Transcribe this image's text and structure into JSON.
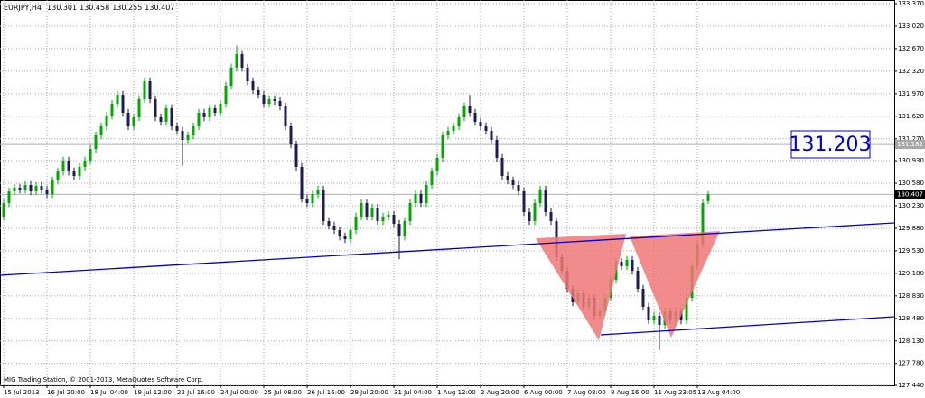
{
  "chart_data": {
    "type": "candlestick",
    "symbol": "EURJPY,H4",
    "footer": "MIG Trading Station, © 2001-2013, MetaQuotes Software Corp.",
    "annotation": "131.203",
    "marker_line": 131.182,
    "up_color": "#00a800",
    "down_color": "#1c1c4e",
    "ylim": [
      127.44,
      133.37
    ],
    "yticks": [
      {
        "value": 127.44,
        "label": "127.440"
      },
      {
        "value": 127.78,
        "label": "127.780"
      },
      {
        "value": 128.13,
        "label": "128.130"
      },
      {
        "value": 128.48,
        "label": "128.480"
      },
      {
        "value": 128.83,
        "label": "128.830"
      },
      {
        "value": 129.18,
        "label": "129.180"
      },
      {
        "value": 129.53,
        "label": "129.530"
      },
      {
        "value": 129.88,
        "label": "129.880"
      },
      {
        "value": 130.23,
        "label": "130.230"
      },
      {
        "value": 130.58,
        "label": "130.580"
      },
      {
        "value": 130.93,
        "label": "130.930"
      },
      {
        "value": 131.27,
        "label": "131.270"
      },
      {
        "value": 131.62,
        "label": "131.620"
      },
      {
        "value": 131.97,
        "label": "131.970"
      },
      {
        "value": 132.32,
        "label": "132.320"
      },
      {
        "value": 132.67,
        "label": "132.670"
      },
      {
        "value": 133.02,
        "label": "133.020"
      },
      {
        "value": 133.37,
        "label": "133.370"
      }
    ],
    "grid": true,
    "categories": [
      "15 Jul 2013",
      null,
      null,
      null,
      null,
      null,
      null,
      null,
      "16 Jul 20:00",
      null,
      null,
      null,
      null,
      null,
      null,
      null,
      "18 Jul 04:00",
      null,
      null,
      null,
      null,
      null,
      null,
      null,
      "19 Jul 12:00",
      null,
      null,
      null,
      null,
      null,
      null,
      null,
      "22 Jul 16:00",
      null,
      null,
      null,
      null,
      null,
      null,
      null,
      "24 Jul 00:00",
      null,
      null,
      null,
      null,
      null,
      null,
      null,
      "25 Jul 08:00",
      null,
      null,
      null,
      null,
      null,
      null,
      null,
      "26 Jul 16:00",
      null,
      null,
      null,
      null,
      null,
      null,
      null,
      "29 Jul 20:00",
      null,
      null,
      null,
      null,
      null,
      null,
      null,
      "31 Jul 04:00",
      null,
      null,
      null,
      null,
      null,
      null,
      null,
      "1 Aug 12:00",
      null,
      null,
      null,
      null,
      null,
      null,
      null,
      "2 Aug 20:00",
      null,
      null,
      null,
      null,
      null,
      null,
      null,
      "6 Aug 00:00",
      null,
      null,
      null,
      null,
      null,
      null,
      null,
      "7 Aug 08:00",
      null,
      null,
      null,
      null,
      null,
      null,
      null,
      "8 Aug 16:00",
      null,
      null,
      null,
      null,
      null,
      null,
      null,
      "11 Aug 23:05",
      null,
      null,
      null,
      null,
      null,
      null,
      null,
      "13 Aug 04:00",
      null,
      null
    ],
    "candles": [
      [
        130.06,
        130.332,
        130.0,
        130.272
      ],
      [
        130.272,
        130.514,
        130.212,
        130.454
      ],
      [
        130.454,
        130.57,
        130.394,
        130.51
      ],
      [
        130.51,
        130.57,
        130.422,
        130.482
      ],
      [
        130.482,
        130.612,
        130.422,
        130.552
      ],
      [
        130.552,
        130.612,
        130.394,
        130.454
      ],
      [
        130.454,
        130.598,
        130.394,
        130.538
      ],
      [
        130.538,
        130.598,
        130.422,
        130.482
      ],
      [
        130.482,
        130.542,
        130.352,
        130.412
      ],
      [
        130.412,
        130.682,
        130.352,
        130.622
      ],
      [
        130.622,
        130.822,
        130.562,
        130.762
      ],
      [
        130.762,
        130.991,
        130.702,
        130.931
      ],
      [
        130.931,
        130.991,
        130.702,
        130.762
      ],
      [
        130.762,
        130.822,
        130.632,
        130.692
      ],
      [
        130.692,
        130.893,
        130.632,
        130.833
      ],
      [
        130.833,
        130.991,
        130.773,
        130.931
      ],
      [
        130.931,
        131.173,
        130.871,
        131.113
      ],
      [
        131.113,
        131.383,
        131.053,
        131.323
      ],
      [
        131.323,
        131.523,
        131.263,
        131.463
      ],
      [
        131.463,
        131.692,
        131.403,
        131.632
      ],
      [
        131.632,
        131.874,
        131.572,
        131.814
      ],
      [
        131.814,
        132.014,
        131.754,
        131.954
      ],
      [
        131.954,
        132.014,
        131.614,
        131.674
      ],
      [
        131.674,
        131.734,
        131.403,
        131.463
      ],
      [
        131.463,
        131.664,
        131.403,
        131.604
      ],
      [
        131.604,
        131.944,
        131.544,
        131.884
      ],
      [
        131.884,
        132.224,
        131.824,
        132.164
      ],
      [
        132.164,
        132.224,
        131.824,
        131.884
      ],
      [
        131.884,
        131.944,
        131.544,
        131.604
      ],
      [
        131.604,
        131.664,
        131.474,
        131.534
      ],
      [
        131.534,
        131.804,
        131.474,
        131.744
      ],
      [
        131.744,
        131.804,
        131.403,
        131.463
      ],
      [
        131.463,
        131.523,
        131.333,
        131.393
      ],
      [
        131.393,
        131.453,
        130.85,
        131.253
      ],
      [
        131.253,
        131.383,
        131.193,
        131.323
      ],
      [
        131.323,
        131.523,
        131.263,
        131.463
      ],
      [
        131.463,
        131.734,
        131.403,
        131.674
      ],
      [
        131.674,
        131.734,
        131.544,
        131.604
      ],
      [
        131.604,
        131.804,
        131.544,
        131.744
      ],
      [
        131.744,
        131.804,
        131.614,
        131.674
      ],
      [
        131.674,
        131.874,
        131.614,
        131.814
      ],
      [
        131.814,
        132.154,
        131.754,
        132.094
      ],
      [
        132.094,
        132.435,
        132.034,
        132.375
      ],
      [
        132.375,
        132.72,
        132.315,
        132.585
      ],
      [
        132.585,
        132.645,
        132.315,
        132.375
      ],
      [
        132.375,
        132.435,
        132.104,
        132.164
      ],
      [
        132.164,
        132.224,
        131.964,
        132.024
      ],
      [
        132.024,
        132.084,
        131.894,
        131.954
      ],
      [
        131.954,
        132.014,
        131.754,
        131.814
      ],
      [
        131.814,
        131.944,
        131.754,
        131.884
      ],
      [
        131.884,
        131.944,
        131.796,
        131.856
      ],
      [
        131.856,
        131.916,
        131.712,
        131.772
      ],
      [
        131.772,
        131.832,
        131.403,
        131.463
      ],
      [
        131.463,
        131.523,
        131.123,
        131.183
      ],
      [
        131.183,
        131.243,
        130.773,
        130.833
      ],
      [
        130.833,
        130.893,
        130.282,
        130.342
      ],
      [
        130.342,
        130.402,
        130.212,
        130.272
      ],
      [
        130.272,
        130.472,
        130.212,
        130.412
      ],
      [
        130.412,
        130.542,
        130.352,
        130.482
      ],
      [
        130.482,
        130.542,
        129.931,
        129.991
      ],
      [
        129.991,
        130.051,
        129.861,
        129.921
      ],
      [
        129.921,
        129.981,
        129.791,
        129.851
      ],
      [
        129.851,
        129.911,
        129.693,
        129.753
      ],
      [
        129.753,
        129.813,
        129.651,
        129.711
      ],
      [
        129.711,
        129.911,
        129.651,
        129.851
      ],
      [
        129.851,
        130.122,
        129.791,
        130.062
      ],
      [
        130.062,
        130.332,
        130.002,
        130.272
      ],
      [
        130.272,
        130.332,
        130.002,
        130.062
      ],
      [
        130.062,
        130.262,
        130.002,
        130.202
      ],
      [
        130.202,
        130.262,
        129.931,
        129.991
      ],
      [
        129.991,
        130.122,
        129.931,
        130.062
      ],
      [
        130.062,
        130.15,
        130.002,
        130.09
      ],
      [
        130.09,
        130.15,
        129.889,
        129.949
      ],
      [
        129.949,
        130.009,
        129.4,
        129.753
      ],
      [
        129.753,
        130.051,
        129.693,
        129.991
      ],
      [
        129.991,
        130.332,
        129.931,
        130.272
      ],
      [
        130.272,
        130.472,
        130.212,
        130.412
      ],
      [
        130.412,
        130.472,
        130.212,
        130.272
      ],
      [
        130.272,
        130.612,
        130.212,
        130.552
      ],
      [
        130.552,
        130.822,
        130.492,
        130.762
      ],
      [
        130.762,
        131.033,
        130.702,
        130.973
      ],
      [
        130.973,
        131.383,
        130.913,
        131.323
      ],
      [
        131.323,
        131.453,
        131.263,
        131.393
      ],
      [
        131.393,
        131.523,
        131.333,
        131.463
      ],
      [
        131.463,
        131.664,
        131.403,
        131.604
      ],
      [
        131.604,
        131.832,
        131.544,
        131.772
      ],
      [
        131.772,
        131.95,
        131.614,
        131.674
      ],
      [
        131.674,
        131.734,
        131.474,
        131.534
      ],
      [
        131.534,
        131.594,
        131.403,
        131.463
      ],
      [
        131.463,
        131.523,
        131.333,
        131.393
      ],
      [
        131.393,
        131.453,
        131.193,
        131.253
      ],
      [
        131.253,
        131.313,
        130.913,
        130.973
      ],
      [
        130.973,
        131.033,
        130.632,
        130.692
      ],
      [
        130.692,
        130.752,
        130.562,
        130.622
      ],
      [
        130.622,
        130.682,
        130.492,
        130.552
      ],
      [
        130.552,
        130.612,
        130.394,
        130.454
      ],
      [
        130.454,
        130.514,
        130.072,
        130.132
      ],
      [
        130.132,
        130.192,
        129.931,
        129.991
      ],
      [
        129.991,
        130.332,
        129.931,
        130.272
      ],
      [
        130.272,
        130.542,
        130.212,
        130.482
      ],
      [
        130.482,
        130.542,
        130.072,
        130.132
      ],
      [
        130.132,
        130.192,
        129.931,
        129.991
      ],
      [
        129.991,
        130.051,
        129.371,
        129.431
      ],
      [
        129.431,
        129.491,
        129.16,
        129.22
      ],
      [
        129.22,
        129.28,
        128.88,
        128.94
      ],
      [
        128.94,
        129.0,
        128.67,
        128.73
      ],
      [
        128.73,
        128.93,
        128.67,
        128.87
      ],
      [
        128.87,
        128.93,
        128.6,
        128.66
      ],
      [
        128.66,
        128.86,
        128.6,
        128.8
      ],
      [
        128.8,
        128.86,
        128.459,
        128.519
      ],
      [
        128.519,
        128.65,
        128.459,
        128.59
      ],
      [
        128.59,
        128.86,
        128.53,
        128.8
      ],
      [
        128.8,
        129.14,
        128.74,
        129.08
      ],
      [
        129.08,
        129.421,
        129.02,
        129.361
      ],
      [
        129.361,
        129.421,
        129.23,
        129.29
      ],
      [
        129.29,
        129.449,
        129.23,
        129.389
      ],
      [
        129.389,
        129.449,
        129.16,
        129.22
      ],
      [
        129.22,
        129.28,
        128.88,
        128.94
      ],
      [
        128.94,
        129.0,
        128.6,
        128.66
      ],
      [
        128.66,
        128.72,
        128.389,
        128.449
      ],
      [
        128.449,
        128.579,
        128.389,
        128.519
      ],
      [
        128.519,
        128.579,
        127.99,
        128.379
      ],
      [
        128.379,
        128.65,
        128.319,
        128.59
      ],
      [
        128.59,
        128.65,
        128.389,
        128.449
      ],
      [
        128.449,
        128.65,
        128.389,
        128.59
      ],
      [
        128.59,
        128.65,
        128.389,
        128.449
      ],
      [
        128.449,
        128.86,
        128.389,
        128.8
      ],
      [
        128.8,
        129.35,
        128.74,
        129.29
      ],
      [
        129.29,
        129.701,
        129.23,
        129.641
      ],
      [
        129.641,
        130.332,
        129.581,
        130.272
      ],
      [
        130.301,
        130.458,
        130.255,
        130.407
      ]
    ]
  }
}
